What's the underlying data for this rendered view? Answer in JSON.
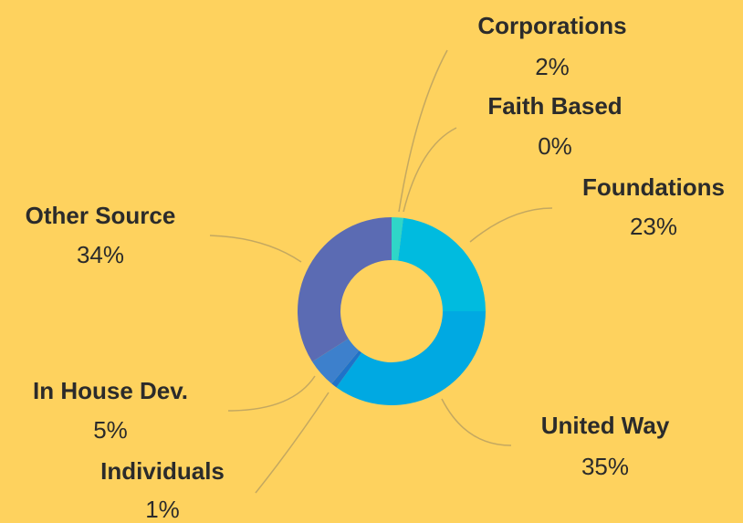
{
  "chart_data": {
    "type": "donut",
    "categories": [
      "Corporations",
      "Faith Based",
      "Foundations",
      "United Way",
      "Individuals",
      "In House Dev.",
      "Other Source"
    ],
    "values": [
      2,
      0,
      23,
      35,
      1,
      5,
      34
    ],
    "value_labels": [
      "2%",
      "0%",
      "23%",
      "35%",
      "1%",
      "5%",
      "34%"
    ],
    "colors": [
      "#2fd6c8",
      "#27c9cf",
      "#00bbdf",
      "#00a9e2",
      "#1f72c9",
      "#3d80cc",
      "#5b6bb3"
    ]
  }
}
